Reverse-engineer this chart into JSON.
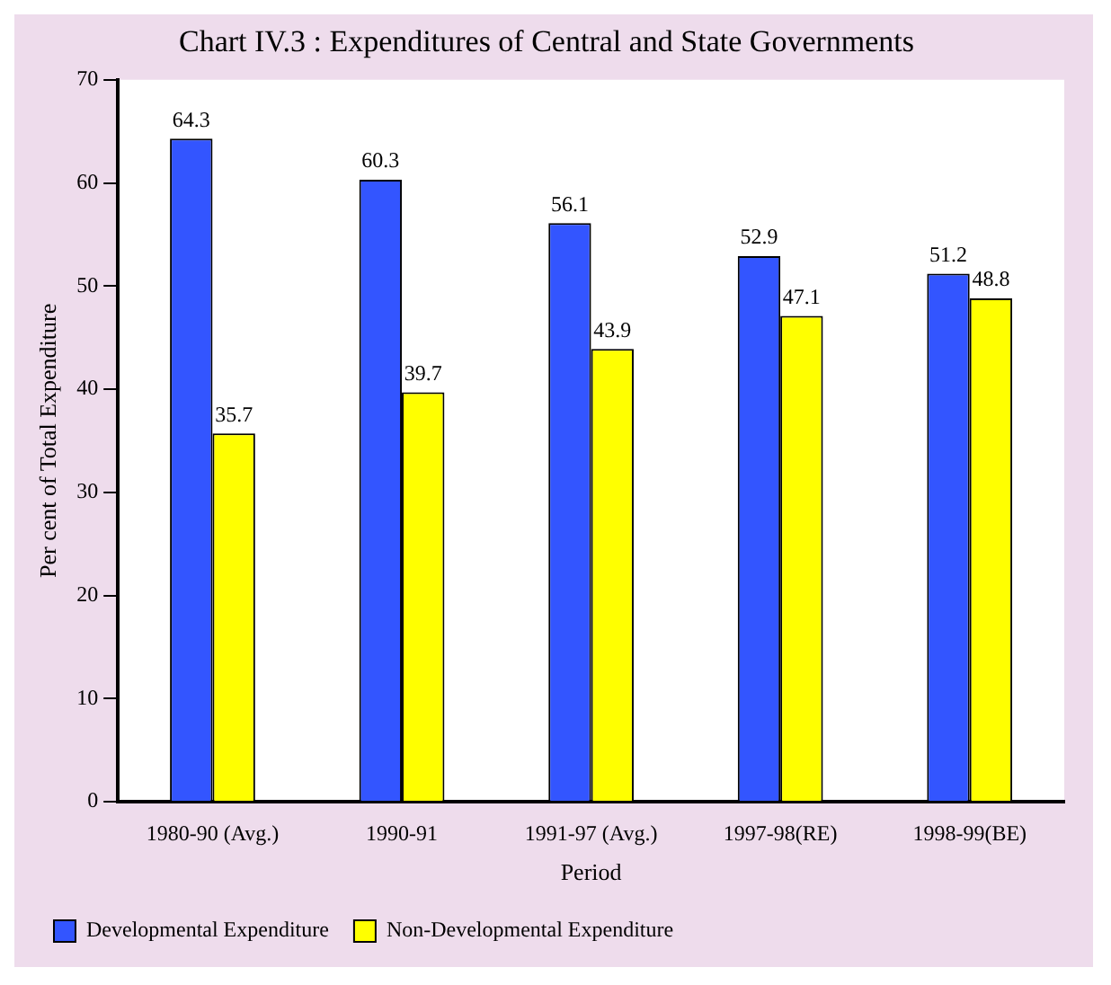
{
  "chart_data": {
    "type": "bar",
    "title": "Chart IV.3 : Expenditures of Central and State Governments",
    "xlabel": "Period",
    "ylabel": "Per cent of Total Expenditure",
    "categories": [
      "1980-90 (Avg.)",
      "1990-91",
      "1991-97 (Avg.)",
      "1997-98(RE)",
      "1998-99(BE)"
    ],
    "series": [
      {
        "name": "Developmental Expenditure",
        "color": "#3355ff",
        "values": [
          64.3,
          60.3,
          56.1,
          52.9,
          51.2
        ]
      },
      {
        "name": "Non-Developmental Expenditure",
        "color": "#ffff00",
        "values": [
          35.7,
          39.7,
          43.9,
          47.1,
          48.8
        ]
      }
    ],
    "ylim": [
      0,
      70
    ],
    "yticks": [
      0,
      10,
      20,
      30,
      40,
      50,
      60,
      70
    ],
    "grid": false,
    "legend": "bottom",
    "data_labels": true
  }
}
